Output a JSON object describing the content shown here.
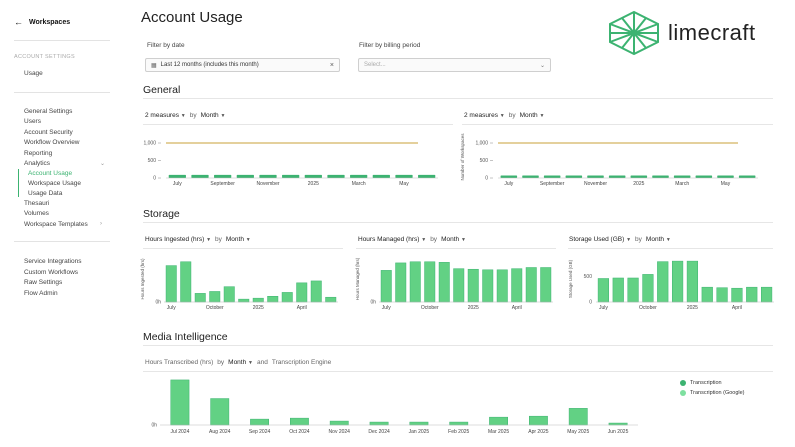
{
  "sidebar": {
    "back_label": "Workspaces",
    "section_label": "ACCOUNT SETTINGS",
    "usage": "Usage",
    "items": [
      {
        "label": "General Settings"
      },
      {
        "label": "Users"
      },
      {
        "label": "Account Security"
      },
      {
        "label": "Workflow Overview"
      },
      {
        "label": "Reporting"
      },
      {
        "label": "Analytics"
      },
      {
        "label": "Account Usage"
      },
      {
        "label": "Workspace Usage"
      },
      {
        "label": "Usage Data"
      },
      {
        "label": "Thesauri"
      },
      {
        "label": "Volumes"
      },
      {
        "label": "Workspace Templates"
      }
    ],
    "integrations": [
      {
        "label": "Service Integrations"
      },
      {
        "label": "Custom Workflows"
      },
      {
        "label": "Raw Settings"
      },
      {
        "label": "Flow Admin"
      }
    ]
  },
  "page": {
    "title": "Account Usage",
    "logo_text": "limecraft",
    "accent": "#3cb371"
  },
  "filters": {
    "date_label": "Filter by date",
    "date_value": "Last 12 months (includes this month)",
    "billing_label": "Filter by billing period",
    "billing_placeholder": "Select..."
  },
  "general": {
    "title": "General",
    "left": {
      "measures": "2 measures",
      "by": "by",
      "period": "Month"
    },
    "right": {
      "measures": "2 measures",
      "by": "by",
      "period": "Month",
      "ylabel": "Number of Workspaces"
    }
  },
  "storage": {
    "title": "Storage",
    "charts": [
      {
        "measure": "Hours Ingested (hrs)",
        "by": "by",
        "period": "Month",
        "ylabel": "Hours Ingested (hrs)"
      },
      {
        "measure": "Hours Managed (hrs)",
        "by": "by",
        "period": "Month",
        "ylabel": "Hours Managed (hrs)"
      },
      {
        "measure": "Storage Used (GB)",
        "by": "by",
        "period": "Month",
        "ylabel": "Storage Used (GB)"
      }
    ]
  },
  "media": {
    "title": "Media Intelligence",
    "measure": "Hours Transcribed (hrs)",
    "by": "by",
    "period": "Month",
    "and": "and",
    "engine": "Transcription Engine",
    "legend": [
      {
        "label": "Transcription",
        "color": "#3cb371"
      },
      {
        "label": "Transcription (Google)",
        "color": "#7ee0a0"
      }
    ]
  },
  "chart_data": [
    {
      "type": "line",
      "id": "general-left",
      "yticks": [
        "1,000",
        "500",
        "0"
      ],
      "ylim": [
        0,
        1200
      ],
      "xticks": [
        "July",
        "September",
        "November",
        "2025",
        "March",
        "May"
      ],
      "series": [
        {
          "values": [
            1000,
            1000,
            1000,
            1000,
            1000,
            1000,
            1000,
            1000,
            1000,
            1000,
            1000,
            1000
          ],
          "color": "#c8a23a",
          "kind": "line"
        },
        {
          "values": [
            30,
            30,
            30,
            30,
            30,
            30,
            30,
            30,
            30,
            30,
            30,
            30
          ],
          "color": "#3cb371",
          "kind": "bar"
        }
      ]
    },
    {
      "type": "line",
      "id": "general-right",
      "yticks": [
        "1,000",
        "500",
        "0"
      ],
      "ylim": [
        0,
        1200
      ],
      "xticks": [
        "July",
        "September",
        "November",
        "2025",
        "March",
        "May"
      ],
      "series": [
        {
          "values": [
            1000,
            1000,
            1000,
            1000,
            1000,
            1000,
            1000,
            1000,
            1000,
            1000,
            1000,
            1000
          ],
          "color": "#c8a23a",
          "kind": "line"
        },
        {
          "values": [
            8,
            8,
            8,
            8,
            8,
            8,
            8,
            8,
            8,
            8,
            8,
            8
          ],
          "color": "#3cb371",
          "kind": "bar"
        }
      ]
    },
    {
      "type": "bar",
      "id": "hours-ingested",
      "yticks": [
        "0h"
      ],
      "xticks": [
        "July",
        "October",
        "2025",
        "April"
      ],
      "values": [
        38,
        42,
        9,
        11,
        16,
        3,
        4,
        6,
        10,
        20,
        22,
        5
      ],
      "ymax": 48
    },
    {
      "type": "bar",
      "id": "hours-managed",
      "yticks": [
        "0h"
      ],
      "xticks": [
        "July",
        "October",
        "2025",
        "April"
      ],
      "values": [
        55,
        68,
        70,
        70,
        69,
        58,
        57,
        56,
        56,
        58,
        60,
        60
      ],
      "ymax": 80
    },
    {
      "type": "bar",
      "id": "storage-used",
      "yticks": [
        "500",
        "0"
      ],
      "ymax": 900,
      "xticks": [
        "July",
        "October",
        "2025",
        "April"
      ],
      "values": [
        460,
        470,
        470,
        540,
        790,
        800,
        800,
        290,
        280,
        270,
        290,
        290
      ]
    },
    {
      "type": "bar",
      "id": "hours-transcribed",
      "yticks": [
        "0h"
      ],
      "xticks": [
        "Jul 2024",
        "Aug 2024",
        "Sep 2024",
        "Oct 2024",
        "Nov 2024",
        "Dec 2024",
        "Jan 2025",
        "Feb 2025",
        "Mar 2025",
        "Apr 2025",
        "May 2025",
        "Jun 2025"
      ],
      "values": [
        46,
        27,
        6,
        7,
        4,
        3,
        3,
        3,
        8,
        9,
        17,
        2
      ],
      "ymax": 50
    }
  ]
}
